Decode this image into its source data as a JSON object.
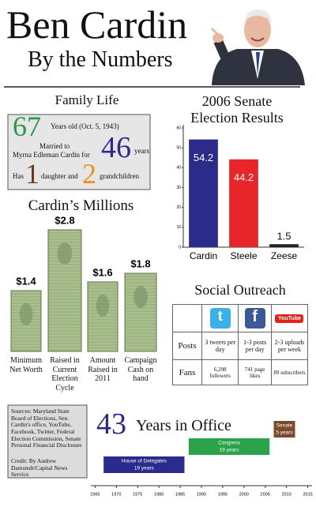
{
  "header": {
    "title": "Ben Cardin",
    "subtitle": "By the Numbers"
  },
  "family_life": {
    "title": "Family Life",
    "age": "67",
    "age_text": "Years old (Oct. 5, 1943)",
    "married_line1": "Married to",
    "married_line2": "Myrna Edleman Cardin for",
    "married_years": "46",
    "years_word": "years",
    "has": "Has",
    "daughters": "1",
    "daughter_text": "daughter and",
    "grandchildren": "2",
    "grandchildren_text": "grandchildren"
  },
  "chart_data": [
    {
      "type": "bar",
      "title": "2006 Senate Election Results",
      "categories": [
        "Cardin",
        "Steele",
        "Zeese"
      ],
      "values": [
        54.2,
        44.2,
        1.5
      ],
      "colors": [
        "#2b2b8c",
        "#e8262a",
        "#222222"
      ],
      "ylim": [
        0,
        60
      ],
      "yticks": [
        0,
        10,
        20,
        30,
        40,
        50,
        60
      ]
    },
    {
      "type": "pictograph",
      "title": "Cardin’s Millions",
      "categories": [
        "Minimum Net Worth",
        "Raised in Current Election Cycle",
        "Amount Raised in 2011",
        "Campaign Cash on hand"
      ],
      "values": [
        1.4,
        2.8,
        1.6,
        1.8
      ],
      "value_labels": [
        "$1.4",
        "$2.8",
        "$1.6",
        "$1.8"
      ],
      "color": "#a9bf8c"
    },
    {
      "type": "gantt",
      "title_number": "43",
      "title": "Years in Office",
      "categories": [
        "House of Delegates",
        "Congress",
        "Senate"
      ],
      "durations": [
        "19 years",
        "19 years",
        "5 years"
      ],
      "start": [
        1967,
        1987,
        2007
      ],
      "end": [
        1986,
        2006,
        2012
      ],
      "colors": [
        "#2b2b8c",
        "#2aa24a",
        "#7b4a2a"
      ],
      "xlim": [
        1964,
        2016
      ],
      "xticks": [
        1965,
        1970,
        1975,
        1980,
        1985,
        1990,
        1995,
        2000,
        2005,
        2010,
        2015
      ]
    }
  ],
  "social": {
    "title": "Social Outreach",
    "icons": [
      "t",
      "f",
      "YouTube"
    ],
    "rows": [
      [
        "Posts",
        "3 tweets per day",
        "1-3 posts per day",
        "2-3 uploads per week"
      ],
      [
        "Fans",
        "6,298 followers",
        "741 page likes",
        "89 subscribers"
      ]
    ]
  },
  "sources": {
    "text": "Sources: Maryland State Board of Elections, Sen. Cardin's office, YouTube, Facebook, Twitter, Federal Election Commission, Senate Personal Financial Disclosure",
    "credit": "Credit: By Andrew Damstedt/Capital News Service"
  }
}
